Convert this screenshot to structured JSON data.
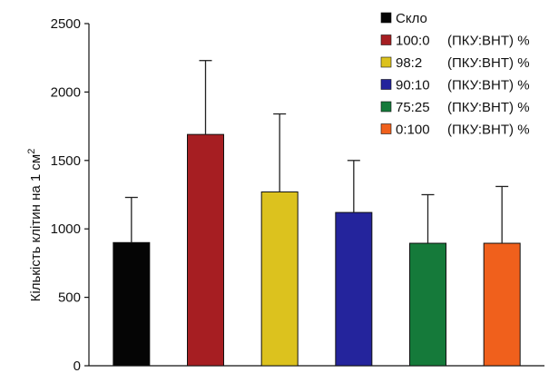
{
  "chart_data": {
    "type": "bar",
    "title": "",
    "xlabel": "",
    "ylabel": "Кількість клітин на 1 см",
    "ylabel_superscript": "2",
    "ylim": [
      0,
      2500
    ],
    "yticks": [
      0,
      500,
      1000,
      1500,
      2000,
      2500
    ],
    "grid": false,
    "legend_position": "top-right",
    "categories": [
      "Скло",
      "100:0",
      "98:2",
      "90:10",
      "75:25",
      "0:100"
    ],
    "values": [
      900,
      1690,
      1270,
      1120,
      895,
      895
    ],
    "error_upper": [
      1230,
      2230,
      1840,
      1500,
      1250,
      1310
    ],
    "colors": [
      "#050505",
      "#a61e22",
      "#dcc21e",
      "#24249c",
      "#157a3a",
      "#f0601c"
    ],
    "legend": [
      {
        "name": "Скло",
        "color": "#050505"
      },
      {
        "name": "100:0",
        "suffix": "(ПКУ:ВНТ) %",
        "color": "#a61e22"
      },
      {
        "name": "98:2",
        "suffix": "(ПКУ:ВНТ) %",
        "color": "#dcc21e"
      },
      {
        "name": "90:10",
        "suffix": "(ПКУ:ВНТ) %",
        "color": "#24249c"
      },
      {
        "name": "75:25",
        "suffix": "(ПКУ:ВНТ) %",
        "color": "#157a3a"
      },
      {
        "name": "0:100",
        "suffix": "(ПКУ:ВНТ) %",
        "color": "#f0601c"
      }
    ]
  }
}
